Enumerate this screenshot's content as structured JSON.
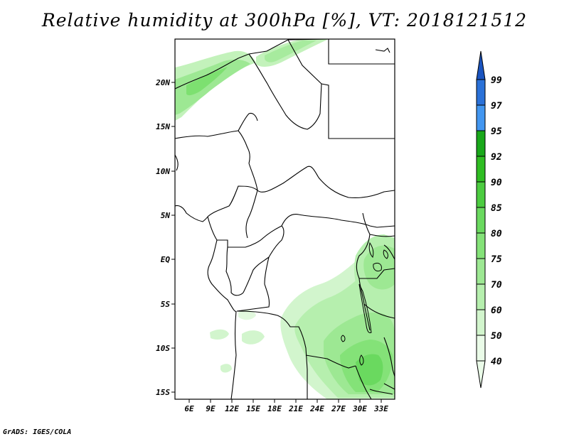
{
  "title": "Relative humidity at 300hPa [%], VT: 2018121512",
  "credit": "GrADS: IGES/COLA",
  "map": {
    "lon_range": [
      3,
      34
    ],
    "lat_range": [
      -16,
      25
    ],
    "lat_labels": [
      "20N",
      "15N",
      "10N",
      "5N",
      "EQ",
      "5S",
      "10S",
      "15S"
    ],
    "lon_labels": [
      "6E",
      "9E",
      "12E",
      "15E",
      "18E",
      "21E",
      "24E",
      "27E",
      "30E",
      "33E"
    ]
  },
  "colorbar": {
    "levels": [
      "40",
      "50",
      "60",
      "70",
      "75",
      "80",
      "85",
      "90",
      "92",
      "95",
      "97",
      "99"
    ],
    "colors": [
      "#eafbe8",
      "#d2f5cd",
      "#b6efae",
      "#9de893",
      "#84e278",
      "#6ad95f",
      "#4ccc40",
      "#2fbd22",
      "#19a81a",
      "#0f9410",
      "#4296f0",
      "#2a71d8",
      "#1a54c0"
    ]
  }
}
